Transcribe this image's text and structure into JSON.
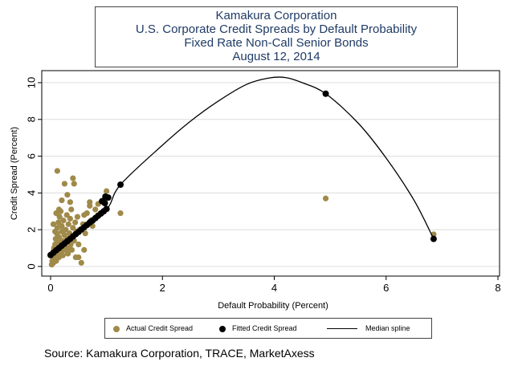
{
  "titles": [
    "Kamakura Corporation",
    "U.S. Corporate Credit Spreads by Default Probability",
    "Fixed Rate Non-Call Senior Bonds",
    "August 12, 2014"
  ],
  "source": "Source: Kamakura Corporation, TRACE, MarketAxess",
  "legend": {
    "actual": "Actual Credit Spread",
    "fitted": "Fitted Credit Spread",
    "median": "Median spline"
  },
  "colors": {
    "actual": "#a08a4a",
    "fitted": "#000000",
    "median": "#000000",
    "title": "#1f3b66"
  },
  "chart_data": {
    "type": "scatter",
    "title": "",
    "xlabel": "Default Probability (Percent)",
    "ylabel": "Credit Spread (Percent)",
    "xlim": [
      0,
      8
    ],
    "ylim": [
      0,
      10
    ],
    "x_ticks": [
      0,
      2,
      4,
      6,
      8
    ],
    "y_ticks": [
      0,
      2,
      4,
      6,
      8,
      10
    ],
    "grid": true,
    "legend_position": "bottom",
    "series": [
      {
        "name": "Actual Credit Spread",
        "kind": "scatter",
        "points": [
          [
            0.02,
            0.1
          ],
          [
            0.03,
            0.3
          ],
          [
            0.04,
            0.5
          ],
          [
            0.05,
            0.2
          ],
          [
            0.05,
            0.8
          ],
          [
            0.06,
            1.0
          ],
          [
            0.07,
            0.4
          ],
          [
            0.08,
            1.2
          ],
          [
            0.08,
            0.6
          ],
          [
            0.09,
            1.5
          ],
          [
            0.1,
            0.9
          ],
          [
            0.1,
            0.3
          ],
          [
            0.11,
            1.8
          ],
          [
            0.12,
            2.1
          ],
          [
            0.12,
            0.7
          ],
          [
            0.13,
            1.3
          ],
          [
            0.14,
            2.4
          ],
          [
            0.15,
            0.5
          ],
          [
            0.15,
            1.6
          ],
          [
            0.16,
            2.7
          ],
          [
            0.17,
            1.0
          ],
          [
            0.18,
            3.0
          ],
          [
            0.19,
            0.8
          ],
          [
            0.2,
            1.9
          ],
          [
            0.2,
            2.2
          ],
          [
            0.21,
            1.4
          ],
          [
            0.22,
            0.6
          ],
          [
            0.23,
            2.5
          ],
          [
            0.24,
            1.1
          ],
          [
            0.25,
            1.7
          ],
          [
            0.26,
            0.9
          ],
          [
            0.27,
            2.0
          ],
          [
            0.28,
            1.3
          ],
          [
            0.29,
            2.8
          ],
          [
            0.3,
            1.5
          ],
          [
            0.31,
            0.7
          ],
          [
            0.32,
            2.3
          ],
          [
            0.33,
            1.0
          ],
          [
            0.34,
            1.8
          ],
          [
            0.35,
            2.6
          ],
          [
            0.36,
            1.2
          ],
          [
            0.37,
            3.1
          ],
          [
            0.38,
            0.9
          ],
          [
            0.39,
            1.6
          ],
          [
            0.4,
            2.1
          ],
          [
            0.42,
            1.4
          ],
          [
            0.44,
            2.4
          ],
          [
            0.45,
            0.5
          ],
          [
            0.46,
            1.9
          ],
          [
            0.48,
            2.7
          ],
          [
            0.5,
            1.2
          ],
          [
            0.52,
            2.0
          ],
          [
            0.55,
            0.2
          ],
          [
            0.58,
            2.3
          ],
          [
            0.6,
            2.8
          ],
          [
            0.62,
            1.8
          ],
          [
            0.65,
            2.9
          ],
          [
            0.7,
            3.3
          ],
          [
            0.72,
            2.5
          ],
          [
            0.75,
            2.2
          ],
          [
            0.8,
            3.1
          ],
          [
            0.85,
            3.4
          ],
          [
            0.9,
            2.9
          ],
          [
            0.95,
            3.6
          ],
          [
            1.0,
            4.1
          ],
          [
            1.25,
            2.9
          ],
          [
            0.12,
            5.2
          ],
          [
            0.4,
            4.8
          ],
          [
            0.42,
            4.5
          ],
          [
            0.25,
            4.5
          ],
          [
            0.3,
            3.9
          ],
          [
            0.2,
            3.6
          ],
          [
            0.15,
            3.1
          ],
          [
            0.35,
            3.5
          ],
          [
            0.1,
            2.9
          ],
          [
            0.05,
            2.3
          ],
          [
            0.08,
            1.9
          ],
          [
            0.6,
            0.9
          ],
          [
            0.5,
            0.5
          ],
          [
            0.7,
            3.5
          ],
          [
            4.92,
            3.7
          ],
          [
            6.85,
            1.75
          ]
        ]
      },
      {
        "name": "Fitted Credit Spread",
        "kind": "scatter",
        "points": [
          [
            0.0,
            0.62
          ],
          [
            0.05,
            0.75
          ],
          [
            0.1,
            0.88
          ],
          [
            0.15,
            1.0
          ],
          [
            0.2,
            1.13
          ],
          [
            0.25,
            1.25
          ],
          [
            0.3,
            1.38
          ],
          [
            0.35,
            1.5
          ],
          [
            0.4,
            1.63
          ],
          [
            0.45,
            1.76
          ],
          [
            0.5,
            1.88
          ],
          [
            0.55,
            2.01
          ],
          [
            0.6,
            2.13
          ],
          [
            0.65,
            2.26
          ],
          [
            0.7,
            2.39
          ],
          [
            0.75,
            2.5
          ],
          [
            0.8,
            2.63
          ],
          [
            0.85,
            2.76
          ],
          [
            0.9,
            2.88
          ],
          [
            0.95,
            3.0
          ],
          [
            1.0,
            3.13
          ],
          [
            0.98,
            3.8
          ],
          [
            1.03,
            3.75
          ],
          [
            0.92,
            3.55
          ],
          [
            0.97,
            3.45
          ],
          [
            1.25,
            4.45
          ],
          [
            4.92,
            9.4
          ],
          [
            6.85,
            1.5
          ]
        ]
      },
      {
        "name": "Median spline",
        "kind": "line",
        "points": [
          [
            0.0,
            0.6
          ],
          [
            0.5,
            1.85
          ],
          [
            1.0,
            3.1
          ],
          [
            1.25,
            4.45
          ],
          [
            2.0,
            6.6
          ],
          [
            2.5,
            7.9
          ],
          [
            3.0,
            9.0
          ],
          [
            3.5,
            9.9
          ],
          [
            3.9,
            10.25
          ],
          [
            4.2,
            10.28
          ],
          [
            4.5,
            10.0
          ],
          [
            4.92,
            9.4
          ],
          [
            5.5,
            7.8
          ],
          [
            6.0,
            5.9
          ],
          [
            6.5,
            3.6
          ],
          [
            6.85,
            1.5
          ]
        ]
      }
    ]
  }
}
